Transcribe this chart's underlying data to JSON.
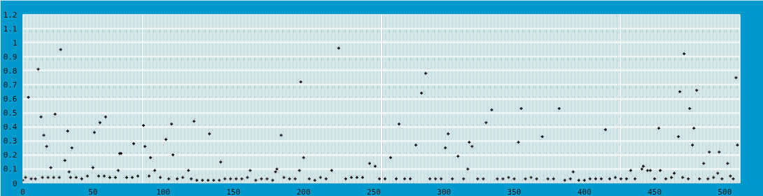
{
  "chart_data": {
    "type": "scatter",
    "marker": "cross",
    "grid": true,
    "xlim": [
      0,
      511
    ],
    "xticks": [
      0,
      50,
      100,
      150,
      200,
      250,
      300,
      350,
      400,
      450,
      500
    ],
    "ylim": [
      0,
      1.2
    ],
    "yticks": [
      0,
      0.1,
      0.2,
      0.3,
      0.4,
      0.5,
      0.6,
      0.7,
      0.8,
      0.9,
      1,
      1.1,
      1.2
    ],
    "series": [
      {
        "color": "#000000",
        "x": [
          4,
          11,
          13,
          15,
          17,
          20,
          23,
          27,
          30,
          32,
          33,
          35,
          50,
          51,
          55,
          59,
          68,
          69,
          70,
          79,
          86,
          87,
          91,
          94,
          102,
          106,
          107,
          118,
          122,
          133,
          141,
          162,
          180,
          181,
          184,
          197,
          198,
          200,
          220,
          225,
          247,
          251,
          262,
          268,
          280,
          284,
          287,
          301,
          303,
          310,
          317,
          318,
          320,
          330,
          334,
          353,
          355,
          370,
          382,
          392,
          415,
          433,
          441,
          442,
          445,
          447,
          453,
          454,
          464,
          467,
          468,
          471,
          475,
          477,
          478,
          480,
          485,
          489,
          495,
          496,
          502,
          504,
          508,
          509
        ],
        "values": [
          0.61,
          0.81,
          0.47,
          0.34,
          0.26,
          0.11,
          0.49,
          0.95,
          0.16,
          0.37,
          0.08,
          0.25,
          0.11,
          0.36,
          0.43,
          0.47,
          0.09,
          0.21,
          0.21,
          0.28,
          0.41,
          0.26,
          0.18,
          0.09,
          0.31,
          0.42,
          0.2,
          0.09,
          0.44,
          0.35,
          0.15,
          0.09,
          0.08,
          0.1,
          0.34,
          0.09,
          0.72,
          0.18,
          0.09,
          0.96,
          0.14,
          0.12,
          0.18,
          0.42,
          0.27,
          0.64,
          0.78,
          0.25,
          0.35,
          0.19,
          0.1,
          0.29,
          0.26,
          0.43,
          0.52,
          0.29,
          0.53,
          0.33,
          0.53,
          0.08,
          0.38,
          0.09,
          0.1,
          0.12,
          0.09,
          0.09,
          0.39,
          0.09,
          0.07,
          0.33,
          0.65,
          0.92,
          0.53,
          0.27,
          0.39,
          0.66,
          0.14,
          0.22,
          0.07,
          0.22,
          0.14,
          0.05,
          0.75,
          0.27
        ]
      },
      {
        "color": "#000000",
        "x": [
          0,
          2,
          6,
          9,
          14,
          18,
          22,
          26,
          34,
          38,
          42,
          46,
          54,
          58,
          62,
          66,
          74,
          78,
          82,
          90,
          98,
          104,
          110,
          114,
          120,
          124,
          128,
          132,
          136,
          140,
          144,
          148,
          152,
          156,
          160,
          166,
          170,
          174,
          178,
          186,
          190,
          194,
          204,
          208,
          212,
          216,
          230,
          234,
          238,
          242,
          254,
          258,
          266,
          272,
          276,
          290,
          294,
          298,
          306,
          314,
          324,
          328,
          338,
          342,
          346,
          350,
          358,
          362,
          366,
          374,
          378,
          386,
          390,
          396,
          400,
          404,
          408,
          412,
          418,
          422,
          426,
          430,
          436,
          450,
          458,
          462,
          470,
          474,
          482,
          488,
          492,
          498,
          506
        ],
        "values": [
          0.02,
          0.04,
          0.03,
          0.03,
          0.04,
          0.04,
          0.04,
          0.04,
          0.04,
          0.04,
          0.03,
          0.05,
          0.05,
          0.05,
          0.04,
          0.04,
          0.04,
          0.04,
          0.05,
          0.05,
          0.04,
          0.03,
          0.03,
          0.04,
          0.03,
          0.02,
          0.02,
          0.02,
          0.02,
          0.02,
          0.03,
          0.03,
          0.03,
          0.03,
          0.04,
          0.02,
          0.03,
          0.03,
          0.02,
          0.04,
          0.03,
          0.03,
          0.03,
          0.02,
          0.04,
          0.03,
          0.03,
          0.04,
          0.04,
          0.04,
          0.03,
          0.03,
          0.03,
          0.03,
          0.03,
          0.03,
          0.03,
          0.03,
          0.03,
          0.03,
          0.03,
          0.03,
          0.03,
          0.03,
          0.04,
          0.03,
          0.03,
          0.04,
          0.03,
          0.03,
          0.03,
          0.02,
          0.03,
          0.02,
          0.02,
          0.03,
          0.03,
          0.03,
          0.03,
          0.04,
          0.03,
          0.03,
          0.03,
          0.03,
          0.03,
          0.04,
          0.04,
          0.03,
          0.03,
          0.03,
          0.04,
          0.03,
          0.03
        ]
      }
    ]
  }
}
